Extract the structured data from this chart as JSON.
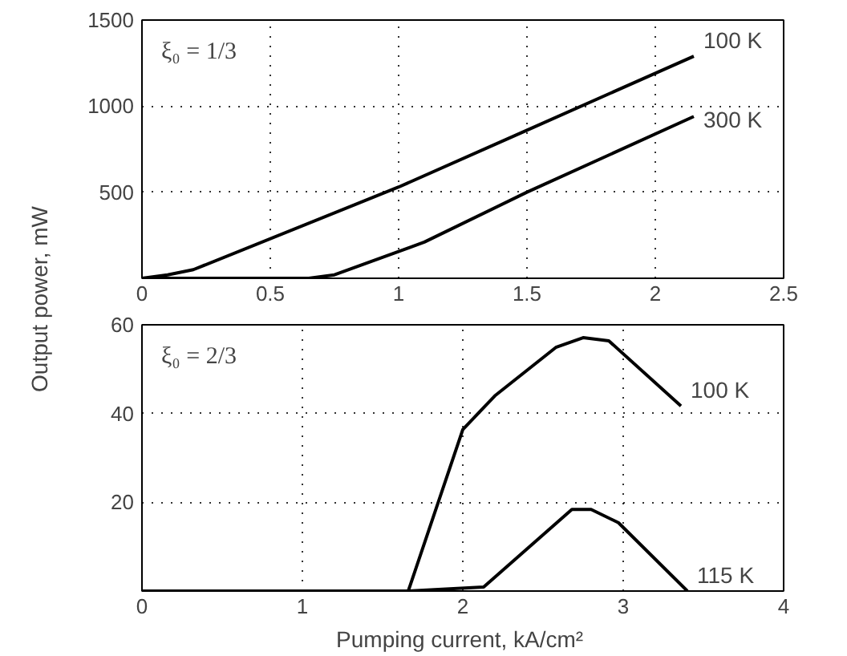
{
  "chart_data": [
    {
      "type": "line",
      "ylabel": "Output power,  mW",
      "xlim": [
        0,
        2.5
      ],
      "ylim": [
        0,
        1500
      ],
      "xticks": [
        0,
        0.5,
        1,
        1.5,
        2,
        2.5
      ],
      "yticks": [
        500,
        1000,
        1500
      ],
      "grid": true,
      "line_style": "solid",
      "annotations": [
        "ξ₀ = 1/3"
      ],
      "series": [
        {
          "name": "100 K",
          "color": "#000000",
          "x": [
            0,
            0.1,
            0.2,
            1,
            1.5,
            2.15
          ],
          "values": [
            0,
            20,
            50,
            530,
            860,
            1290
          ]
        },
        {
          "name": "300 K",
          "color": "#000000",
          "x": [
            0,
            0.65,
            0.75,
            1.1,
            1.5,
            2.15
          ],
          "values": [
            0,
            0,
            20,
            210,
            500,
            940
          ]
        }
      ]
    },
    {
      "type": "line",
      "xlabel": "Pumping current,  kA/cm²",
      "xlim": [
        0,
        4
      ],
      "ylim": [
        0,
        60
      ],
      "xticks": [
        0,
        1,
        2,
        3,
        4
      ],
      "yticks": [
        20,
        40,
        60
      ],
      "grid": true,
      "line_style": "solid",
      "annotations": [
        "ξ₀ = 2/3"
      ],
      "series": [
        {
          "name": "100 K",
          "color": "#000000",
          "x": [
            0,
            1.66,
            2.0,
            2.2,
            2.58,
            2.75,
            2.91,
            3.36
          ],
          "values": [
            0,
            0,
            36.4,
            44,
            54.9,
            57.1,
            56.4,
            41.7
          ]
        },
        {
          "name": "115 K",
          "color": "#000000",
          "x": [
            0,
            1.66,
            2.13,
            2.68,
            2.8,
            2.97,
            3.4
          ],
          "values": [
            0,
            0,
            0.9,
            18.4,
            18.4,
            15.4,
            0
          ]
        }
      ]
    }
  ]
}
